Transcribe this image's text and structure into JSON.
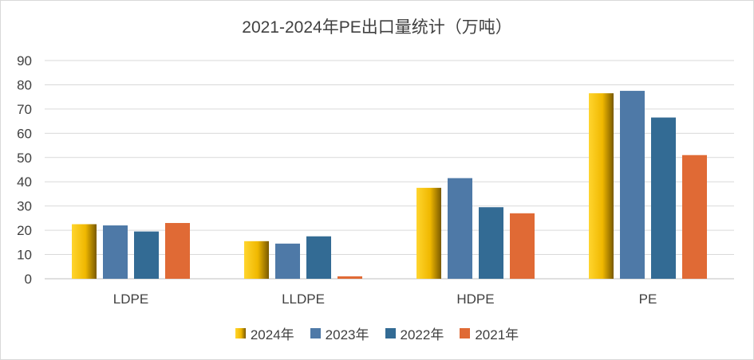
{
  "chart_data": {
    "type": "bar",
    "title": "2021-2024年PE出口量统计（万吨）",
    "xlabel": "",
    "ylabel": "",
    "ylim": [
      0,
      90
    ],
    "yticks": [
      0,
      10,
      20,
      30,
      40,
      50,
      60,
      70,
      80,
      90
    ],
    "grid": true,
    "legend_position": "bottom",
    "categories": [
      "LDPE",
      "LLDPE",
      "HDPE",
      "PE"
    ],
    "series": [
      {
        "name": "2024年",
        "color": "#ffc000",
        "values": [
          22.5,
          15.5,
          37.5,
          76.5
        ]
      },
      {
        "name": "2023年",
        "color": "#4e79a7",
        "values": [
          22,
          14.5,
          41.5,
          77.5
        ]
      },
      {
        "name": "2022年",
        "color": "#336b94",
        "values": [
          19.5,
          17.5,
          29.5,
          66.5
        ]
      },
      {
        "name": "2021年",
        "color": "#e06a35",
        "values": [
          23,
          1,
          27,
          51
        ]
      }
    ]
  }
}
